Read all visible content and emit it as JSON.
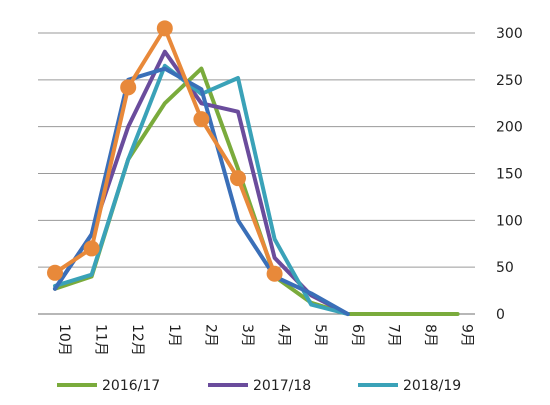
{
  "chart_data": {
    "type": "line",
    "title": "",
    "xlabel": "",
    "ylabel": "",
    "categories": [
      "10月",
      "11月",
      "12月",
      "1月",
      "2月",
      "3月",
      "4月",
      "5月",
      "6月",
      "7月",
      "8月",
      "9月"
    ],
    "ylim": [
      0,
      300
    ],
    "yticks": [
      0,
      50,
      100,
      150,
      200,
      250,
      300
    ],
    "y_axis_side": "right",
    "grid": true,
    "legend": "bottom",
    "series": [
      {
        "name": "2016/17",
        "color": "#7aab3c",
        "values": [
          27,
          40,
          165,
          225,
          262,
          155,
          40,
          12,
          0,
          0,
          0,
          0
        ],
        "markers": false
      },
      {
        "name": "2017/18",
        "color": "#6a4c9c",
        "values": [
          27,
          85,
          200,
          280,
          225,
          216,
          60,
          20,
          0,
          null,
          null,
          null
        ],
        "markers": false
      },
      {
        "name": "2018/19",
        "color": "#3aa2b8",
        "values": [
          30,
          42,
          165,
          265,
          235,
          252,
          80,
          10,
          0,
          null,
          null,
          null
        ],
        "markers": false
      },
      {
        "name": "",
        "color": "#3a6fb8",
        "values": [
          27,
          85,
          250,
          262,
          240,
          100,
          40,
          22,
          0,
          null,
          null,
          null
        ],
        "markers": false
      },
      {
        "name": "",
        "color": "#e8893a",
        "values": [
          44,
          70,
          242,
          305,
          208,
          145,
          43,
          null,
          null,
          null,
          null,
          null
        ],
        "markers": true
      }
    ],
    "legend_entries": [
      "2016/17",
      "2017/18",
      "2018/19"
    ]
  }
}
